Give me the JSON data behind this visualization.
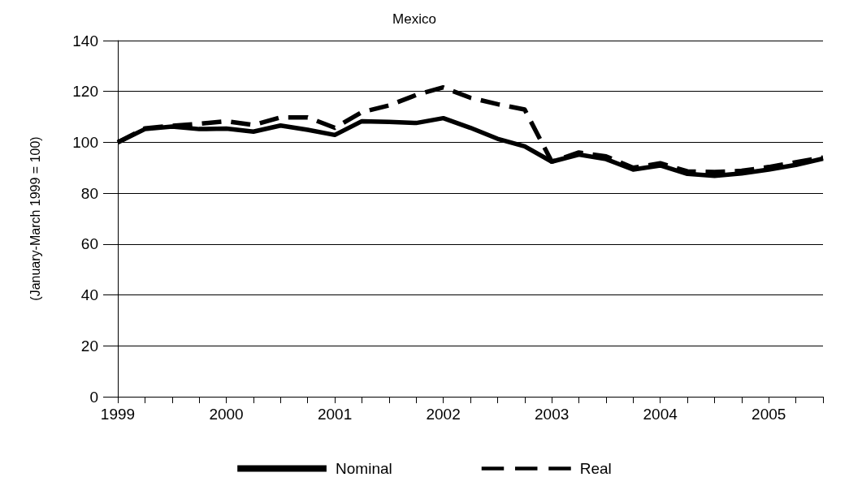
{
  "chart_data": {
    "type": "line",
    "title": "Mexico",
    "ylabel": "(January-March 1999 = 100)",
    "categories": [
      "1999",
      null,
      null,
      null,
      "2000",
      null,
      null,
      null,
      "2001",
      null,
      null,
      null,
      "2002",
      null,
      null,
      null,
      "2003",
      null,
      null,
      null,
      "2004",
      null,
      null,
      null,
      "2005",
      null,
      null
    ],
    "series": [
      {
        "name": "Nominal",
        "color": "#000000",
        "line_style": "solid",
        "values": [
          100,
          105.2,
          106.2,
          105.2,
          105.4,
          104.2,
          106.6,
          104.9,
          102.9,
          108.3,
          108,
          107.6,
          109.5,
          105.7,
          101.4,
          98.4,
          92.4,
          95.2,
          93.4,
          89.3,
          90.9,
          87.6,
          86.8,
          87.8,
          89.3,
          91.1,
          93.6
        ]
      },
      {
        "name": "Real",
        "color": "#000000",
        "line_style": "dashed",
        "values": [
          100,
          105.5,
          106.5,
          107.3,
          108.3,
          106.8,
          109.8,
          109.8,
          105.7,
          111.9,
          114.5,
          118.6,
          121.6,
          117.5,
          115,
          112.9,
          92.4,
          96,
          94.5,
          90,
          91.8,
          88.6,
          88.3,
          88.8,
          90.3,
          92.2,
          94
        ]
      }
    ],
    "ylim": [
      0,
      140
    ],
    "yticks": [
      0,
      20,
      40,
      60,
      80,
      100,
      120,
      140
    ],
    "grid": "y",
    "legend": "bottom",
    "marker": "none"
  }
}
